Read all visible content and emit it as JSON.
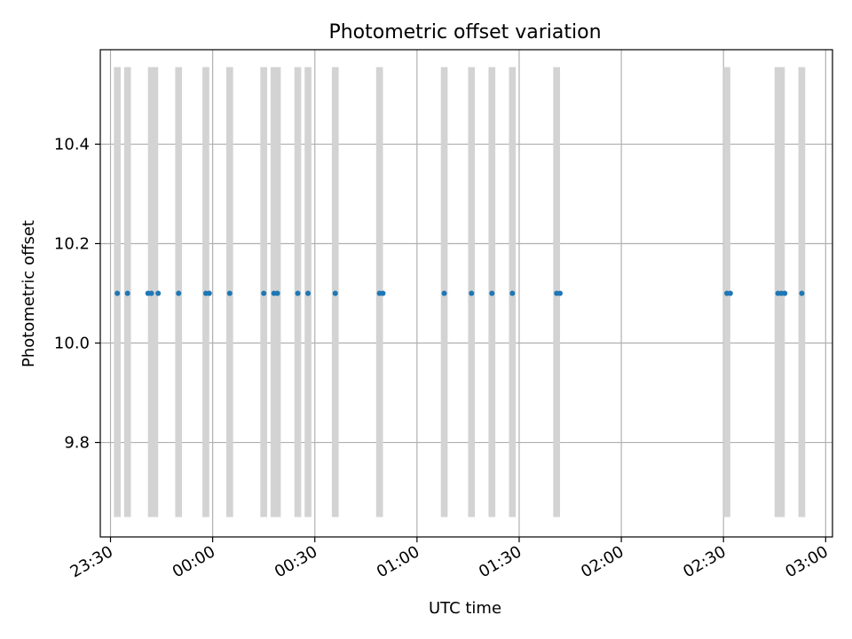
{
  "chart_data": {
    "type": "scatter",
    "title": "Photometric offset variation",
    "xlabel": "UTC time",
    "ylabel": "Photometric offset",
    "x_axis": {
      "type": "time",
      "min": "23:27",
      "max": "03:02",
      "ticks": [
        "23:30",
        "00:00",
        "00:30",
        "01:00",
        "01:30",
        "02:00",
        "02:30",
        "03:00"
      ]
    },
    "y_axis": {
      "min": 9.61,
      "max": 10.59,
      "ticks": [
        "9.8",
        "10.0",
        "10.2",
        "10.4"
      ],
      "tick_values": [
        9.8,
        10.0,
        10.2,
        10.4
      ]
    },
    "grid": true,
    "points": [
      {
        "x": "23:32",
        "y": 10.1
      },
      {
        "x": "23:35",
        "y": 10.1
      },
      {
        "x": "23:41",
        "y": 10.1
      },
      {
        "x": "23:42",
        "y": 10.1
      },
      {
        "x": "23:44",
        "y": 10.1
      },
      {
        "x": "23:50",
        "y": 10.1
      },
      {
        "x": "23:58",
        "y": 10.1
      },
      {
        "x": "23:59",
        "y": 10.1
      },
      {
        "x": "00:05",
        "y": 10.1
      },
      {
        "x": "00:15",
        "y": 10.1
      },
      {
        "x": "00:18",
        "y": 10.1
      },
      {
        "x": "00:19",
        "y": 10.1
      },
      {
        "x": "00:25",
        "y": 10.1
      },
      {
        "x": "00:28",
        "y": 10.1
      },
      {
        "x": "00:36",
        "y": 10.1
      },
      {
        "x": "00:49",
        "y": 10.1
      },
      {
        "x": "00:50",
        "y": 10.1
      },
      {
        "x": "01:08",
        "y": 10.1
      },
      {
        "x": "01:16",
        "y": 10.1
      },
      {
        "x": "01:22",
        "y": 10.1
      },
      {
        "x": "01:28",
        "y": 10.1
      },
      {
        "x": "01:41",
        "y": 10.1
      },
      {
        "x": "01:42",
        "y": 10.1
      },
      {
        "x": "02:31",
        "y": 10.1
      },
      {
        "x": "02:32",
        "y": 10.1
      },
      {
        "x": "02:46",
        "y": 10.1
      },
      {
        "x": "02:47",
        "y": 10.1
      },
      {
        "x": "02:48",
        "y": 10.1
      },
      {
        "x": "02:53",
        "y": 10.1
      }
    ],
    "bands": [
      {
        "start": "23:31",
        "end": "23:33"
      },
      {
        "start": "23:34",
        "end": "23:36"
      },
      {
        "start": "23:41",
        "end": "23:42"
      },
      {
        "start": "23:42",
        "end": "23:44"
      },
      {
        "start": "23:49",
        "end": "23:51"
      },
      {
        "start": "23:57",
        "end": "23:59"
      },
      {
        "start": "00:04",
        "end": "00:06"
      },
      {
        "start": "00:14",
        "end": "00:16"
      },
      {
        "start": "00:17",
        "end": "00:20"
      },
      {
        "start": "00:24",
        "end": "00:26"
      },
      {
        "start": "00:27",
        "end": "00:29"
      },
      {
        "start": "00:35",
        "end": "00:37"
      },
      {
        "start": "00:48",
        "end": "00:50"
      },
      {
        "start": "01:07",
        "end": "01:09"
      },
      {
        "start": "01:15",
        "end": "01:17"
      },
      {
        "start": "01:21",
        "end": "01:23"
      },
      {
        "start": "01:27",
        "end": "01:29"
      },
      {
        "start": "01:40",
        "end": "01:42"
      },
      {
        "start": "02:30",
        "end": "02:32"
      },
      {
        "start": "02:45",
        "end": "02:48"
      },
      {
        "start": "02:52",
        "end": "02:54"
      }
    ],
    "band_y_range": [
      9.65,
      10.555
    ],
    "colors": {
      "points": "#1f77b4",
      "bands": "#d3d3d3",
      "grid": "#b0b0b0",
      "axes": "#000000"
    }
  }
}
